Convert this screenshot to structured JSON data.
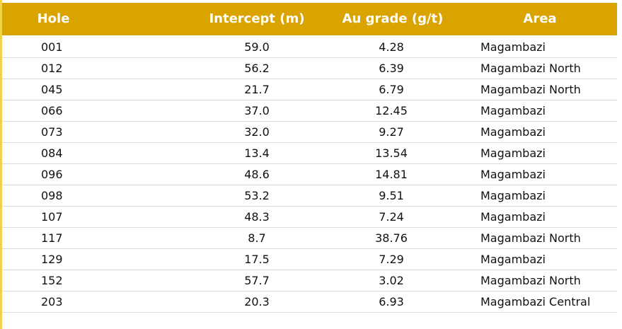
{
  "table": {
    "header": [
      "Hole",
      "Intercept (m)",
      "Au grade (g/t)",
      "Area"
    ],
    "rows": [
      [
        "001",
        "59.0",
        "4.28",
        "Magambazi"
      ],
      [
        "012",
        "56.2",
        "6.39",
        "Magambazi North"
      ],
      [
        "045",
        "21.7",
        "6.79",
        "Magambazi North"
      ],
      [
        "066",
        "37.0",
        "12.45",
        "Magambazi"
      ],
      [
        "073",
        "32.0",
        "9.27",
        "Magambazi"
      ],
      [
        "084",
        "13.4",
        "13.54",
        "Magambazi"
      ],
      [
        "096",
        "48.6",
        "14.81",
        "Magambazi"
      ],
      [
        "098",
        "53.2",
        "9.51",
        "Magambazi"
      ],
      [
        "107",
        "48.3",
        "7.24",
        "Magambazi"
      ],
      [
        "117",
        "8.7",
        "38.76",
        "Magambazi North"
      ],
      [
        "129",
        "17.5",
        "7.29",
        "Magambazi"
      ],
      [
        "152",
        "57.7",
        "3.02",
        "Magambazi North"
      ],
      [
        "203",
        "20.3",
        "6.93",
        "Magambazi Central"
      ]
    ]
  }
}
